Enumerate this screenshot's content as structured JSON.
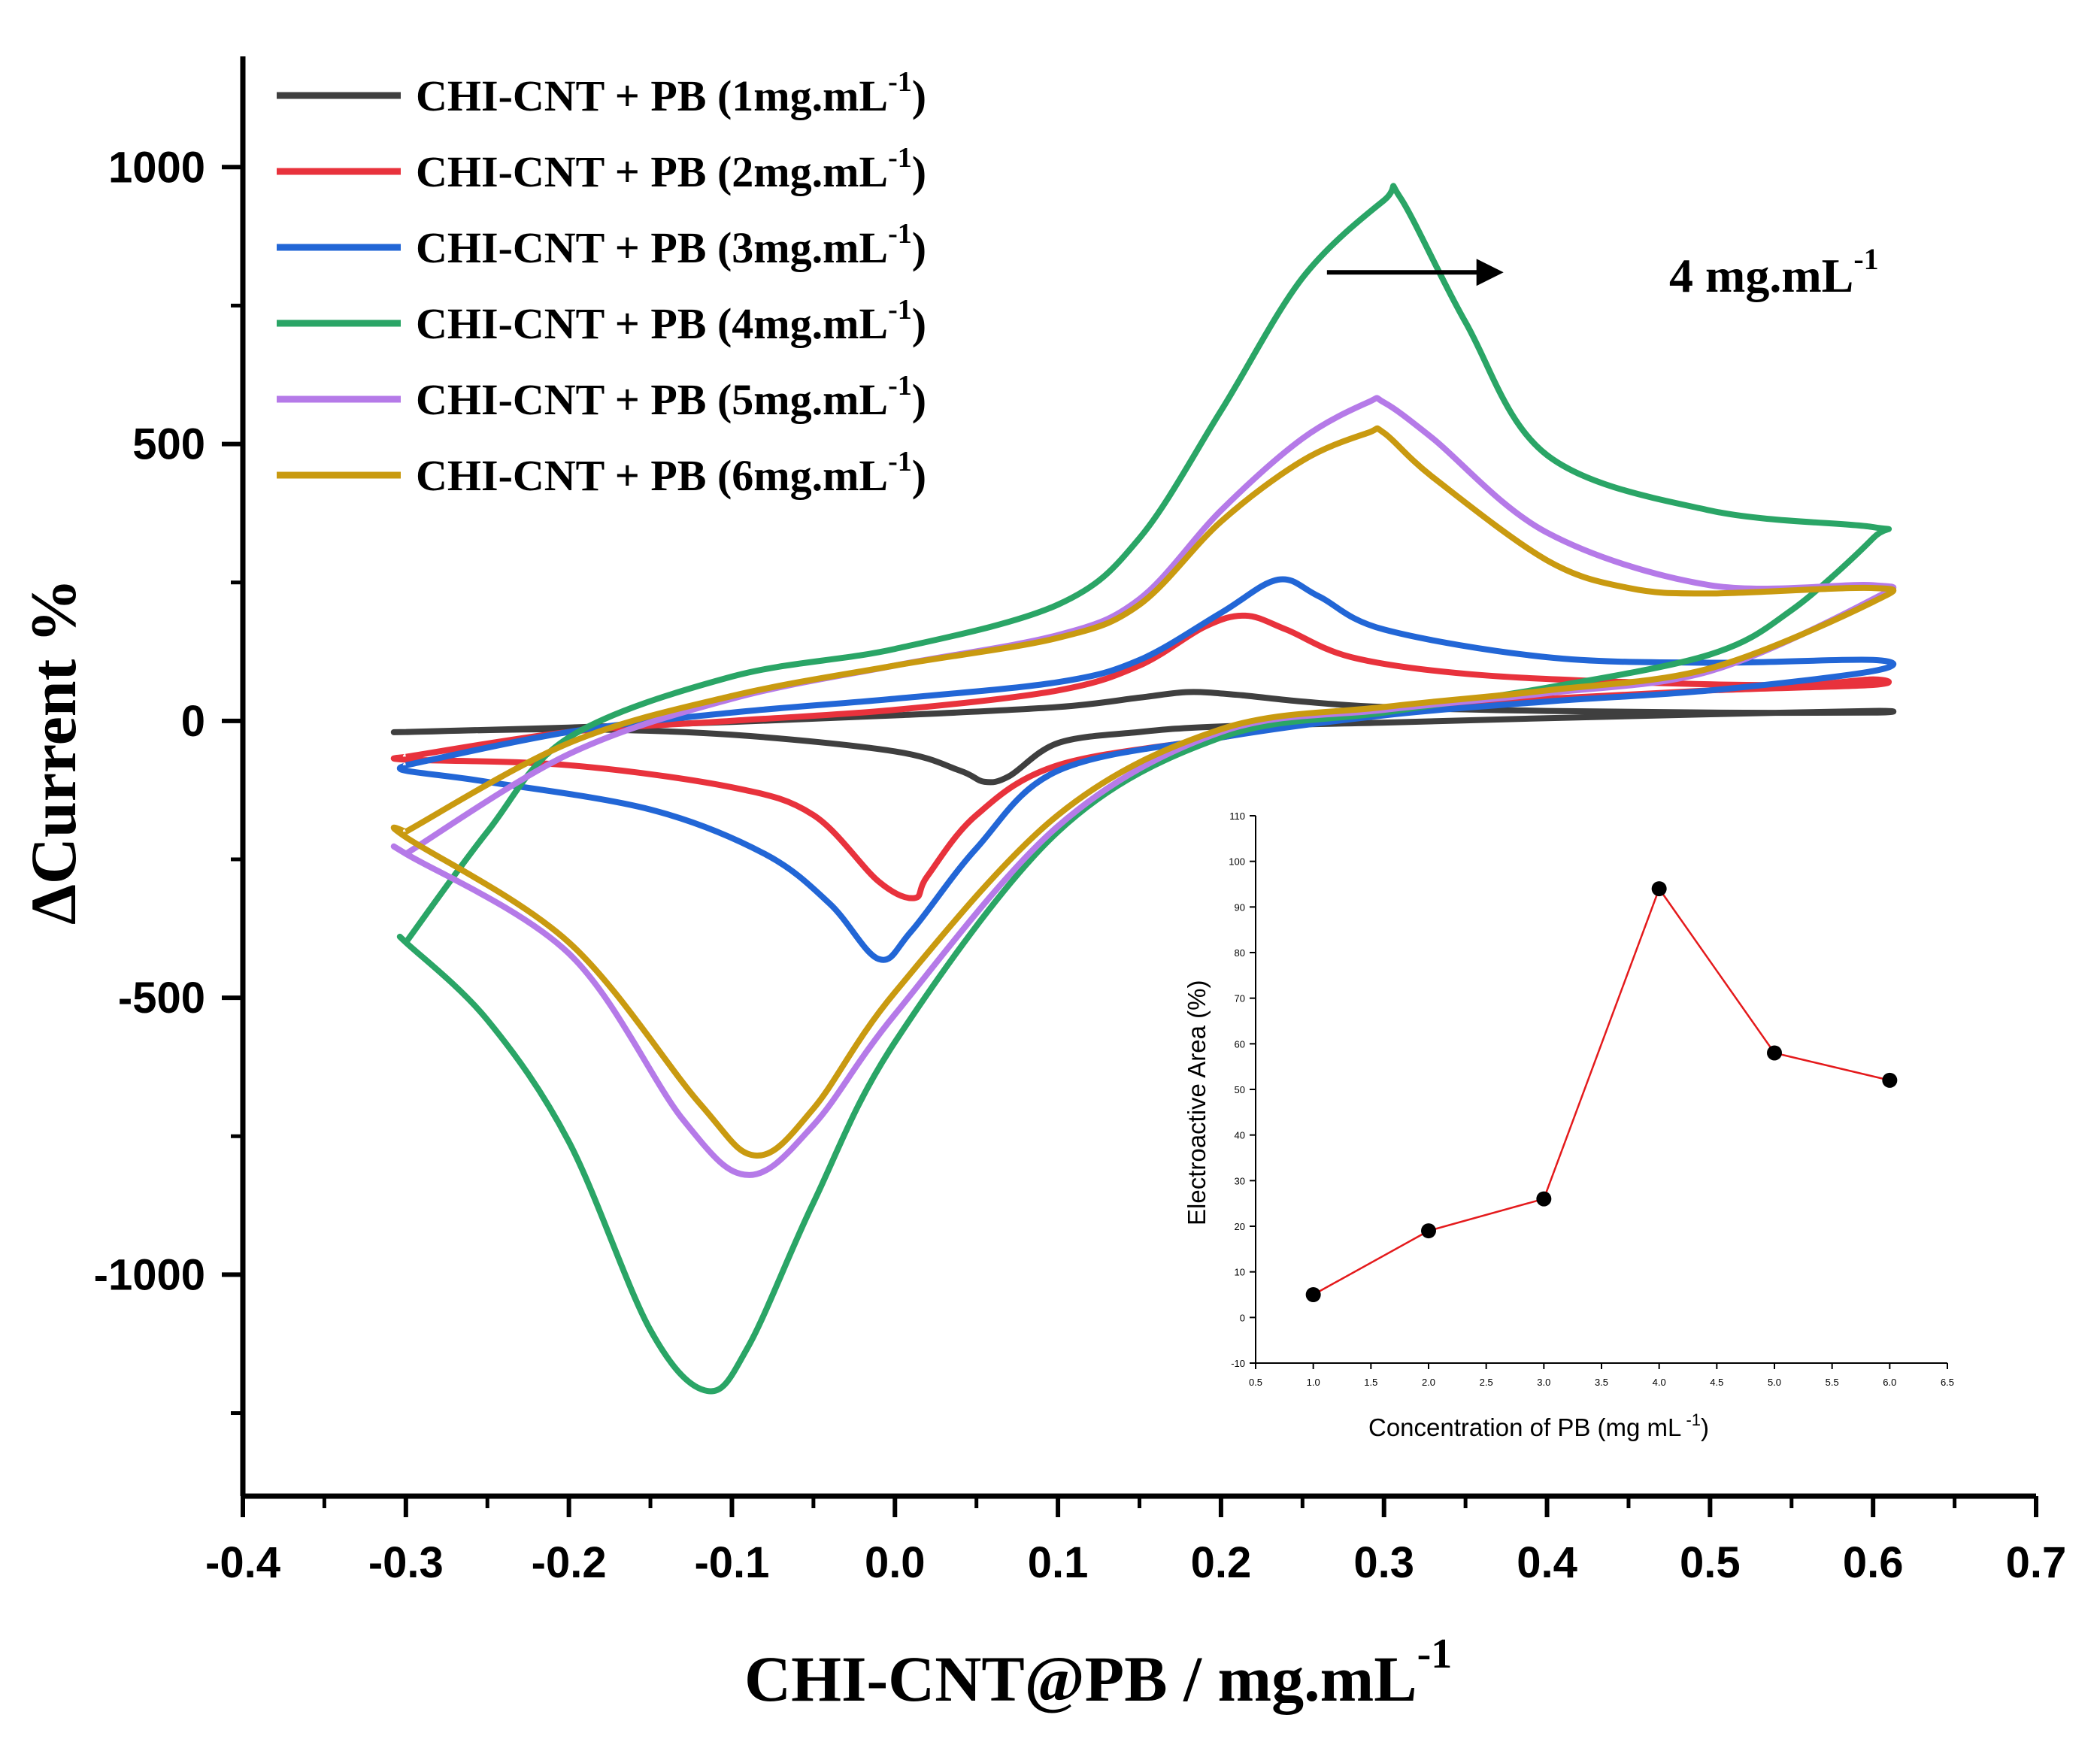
{
  "chart_data": [
    {
      "type": "line",
      "title": "",
      "xlabel": "CHI-CNT@PB / mg.mL",
      "xlabel_sup": "-1",
      "ylabel": "ΔCurrent %",
      "xlim": [
        -0.4,
        0.7
      ],
      "ylim": [
        -1400,
        1200
      ],
      "xticks": [
        -0.4,
        -0.3,
        -0.2,
        -0.1,
        0.0,
        0.1,
        0.2,
        0.3,
        0.4,
        0.5,
        0.6,
        0.7
      ],
      "xtick_labels": [
        "-0.4",
        "-0.3",
        "-0.2",
        "-0.1",
        "0.0",
        "0.1",
        "0.2",
        "0.3",
        "0.4",
        "0.5",
        "0.6",
        "0.7"
      ],
      "yticks": [
        -1000,
        -500,
        0,
        500,
        1000
      ],
      "ytick_labels": [
        "-1000",
        "-500",
        "0",
        "500",
        "1000"
      ],
      "annotation": {
        "text": "4 mg.mL",
        "sup": "-1",
        "arrow_from": [
          0.265,
          810
        ],
        "arrow_to": [
          0.37,
          810
        ]
      },
      "series": [
        {
          "name": "CHI-CNT + PB (1mg.mL",
          "sup": "-1",
          "legend_suffix": ")",
          "color": "#3f3f3f",
          "x": [
            -0.3,
            -0.2,
            -0.1,
            0.0,
            0.1,
            0.15,
            0.18,
            0.21,
            0.25,
            0.3,
            0.4,
            0.5,
            0.6,
            0.6,
            0.5,
            0.4,
            0.3,
            0.2,
            0.15,
            0.1,
            0.07,
            0.055,
            0.04,
            0.0,
            -0.1,
            -0.2,
            -0.3
          ],
          "y": [
            -20,
            -12,
            -2,
            10,
            25,
            42,
            52,
            47,
            35,
            25,
            18,
            15,
            15,
            18,
            12,
            5,
            -3,
            -10,
            -20,
            -40,
            -100,
            -110,
            -90,
            -55,
            -25,
            -15,
            -20
          ]
        },
        {
          "name": "CHI-CNT + PB (2mg.mL",
          "sup": "-1",
          "legend_suffix": ")",
          "color": "#e8323c",
          "x": [
            -0.3,
            -0.2,
            -0.1,
            0.0,
            0.1,
            0.15,
            0.19,
            0.215,
            0.24,
            0.28,
            0.35,
            0.45,
            0.55,
            0.6,
            0.6,
            0.5,
            0.4,
            0.3,
            0.2,
            0.1,
            0.05,
            0.02,
            0.012,
            -0.01,
            -0.05,
            -0.1,
            -0.2,
            -0.3
          ],
          "y": [
            -65,
            -20,
            0,
            20,
            55,
            100,
            170,
            190,
            165,
            115,
            85,
            70,
            65,
            75,
            65,
            55,
            40,
            20,
            -30,
            -80,
            -170,
            -280,
            -320,
            -290,
            -170,
            -120,
            -80,
            -70
          ]
        },
        {
          "name": "CHI-CNT + PB (3mg.mL",
          "sup": "-1",
          "legend_suffix": ")",
          "color": "#2266d6",
          "x": [
            -0.3,
            -0.2,
            -0.1,
            0.0,
            0.1,
            0.15,
            0.2,
            0.235,
            0.26,
            0.3,
            0.4,
            0.5,
            0.6,
            0.6,
            0.5,
            0.4,
            0.3,
            0.2,
            0.1,
            0.05,
            0.01,
            -0.01,
            -0.04,
            -0.08,
            -0.15,
            -0.25,
            -0.3
          ],
          "y": [
            -80,
            -20,
            15,
            40,
            70,
            110,
            195,
            255,
            225,
            165,
            115,
            105,
            110,
            90,
            55,
            35,
            10,
            -30,
            -90,
            -230,
            -380,
            -430,
            -330,
            -240,
            -160,
            -110,
            -90
          ]
        },
        {
          "name": "CHI-CNT + PB (4mg.mL",
          "sup": "-1",
          "legend_suffix": ")",
          "color": "#2aa566",
          "x": [
            -0.3,
            -0.25,
            -0.2,
            -0.1,
            0.0,
            0.1,
            0.15,
            0.2,
            0.25,
            0.3,
            0.31,
            0.35,
            0.4,
            0.5,
            0.6,
            0.6,
            0.55,
            0.5,
            0.4,
            0.3,
            0.2,
            0.1,
            0.0,
            -0.05,
            -0.09,
            -0.115,
            -0.15,
            -0.2,
            -0.25,
            -0.3
          ],
          "y": [
            -400,
            -200,
            -30,
            80,
            130,
            210,
            330,
            560,
            800,
            940,
            945,
            720,
            480,
            380,
            350,
            330,
            200,
            120,
            60,
            15,
            -30,
            -200,
            -580,
            -870,
            -1130,
            -1210,
            -1100,
            -760,
            -540,
            -400
          ]
        },
        {
          "name": "CHI-CNT + PB (5mg.mL",
          "sup": "-1",
          "legend_suffix": ")",
          "color": "#b57ae8",
          "x": [
            -0.3,
            -0.2,
            -0.1,
            0.0,
            0.1,
            0.15,
            0.2,
            0.25,
            0.29,
            0.3,
            0.33,
            0.4,
            0.5,
            0.6,
            0.6,
            0.5,
            0.4,
            0.3,
            0.2,
            0.1,
            0.0,
            -0.05,
            -0.09,
            -0.13,
            -0.2,
            -0.3
          ],
          "y": [
            -240,
            -60,
            40,
            100,
            155,
            220,
            380,
            510,
            575,
            575,
            510,
            340,
            245,
            245,
            220,
            90,
            50,
            20,
            -20,
            -190,
            -530,
            -730,
            -820,
            -720,
            -420,
            -240
          ]
        },
        {
          "name": "CHI-CNT + PB (6mg.mL",
          "sup": "-1",
          "legend_suffix": ")",
          "color": "#c99a10",
          "x": [
            -0.3,
            -0.2,
            -0.1,
            0.0,
            0.1,
            0.15,
            0.2,
            0.25,
            0.29,
            0.3,
            0.33,
            0.4,
            0.45,
            0.5,
            0.6,
            0.6,
            0.5,
            0.4,
            0.3,
            0.2,
            0.1,
            0.0,
            -0.05,
            -0.085,
            -0.12,
            -0.2,
            -0.3
          ],
          "y": [
            -200,
            -40,
            45,
            100,
            150,
            210,
            360,
            470,
            520,
            520,
            440,
            290,
            240,
            230,
            240,
            215,
            95,
            55,
            25,
            -15,
            -170,
            -490,
            -700,
            -785,
            -690,
            -400,
            -210
          ]
        }
      ]
    },
    {
      "type": "line",
      "inset": true,
      "xlabel": "Concentration of PB  (mg mL",
      "xlabel_sup": " -1",
      "xlabel_suffix": ")",
      "ylabel": "Electroactive  Area (%)",
      "xlim": [
        0.5,
        6.5
      ],
      "ylim": [
        -10,
        110
      ],
      "xticks": [
        0.5,
        1.0,
        1.5,
        2.0,
        2.5,
        3.0,
        3.5,
        4.0,
        4.5,
        5.0,
        5.5,
        6.0,
        6.5
      ],
      "xtick_labels": [
        "0.5",
        "1.0",
        "1.5",
        "2.0",
        "2.5",
        "3.0",
        "3.5",
        "4.0",
        "4.5",
        "5.0",
        "5.5",
        "6.0",
        "6.5"
      ],
      "yticks": [
        -10,
        0,
        10,
        20,
        30,
        40,
        50,
        60,
        70,
        80,
        90,
        100,
        110
      ],
      "ytick_labels": [
        "-10",
        "0",
        "10",
        "20",
        "30",
        "40",
        "50",
        "60",
        "70",
        "80",
        "90",
        "100",
        "110"
      ],
      "series": [
        {
          "name": "Electroactive Area",
          "color": "#e41a1c",
          "marker_color": "#000000",
          "x": [
            1,
            2,
            3,
            4,
            5,
            6
          ],
          "y": [
            5,
            19,
            26,
            94,
            58,
            52
          ]
        }
      ]
    }
  ]
}
